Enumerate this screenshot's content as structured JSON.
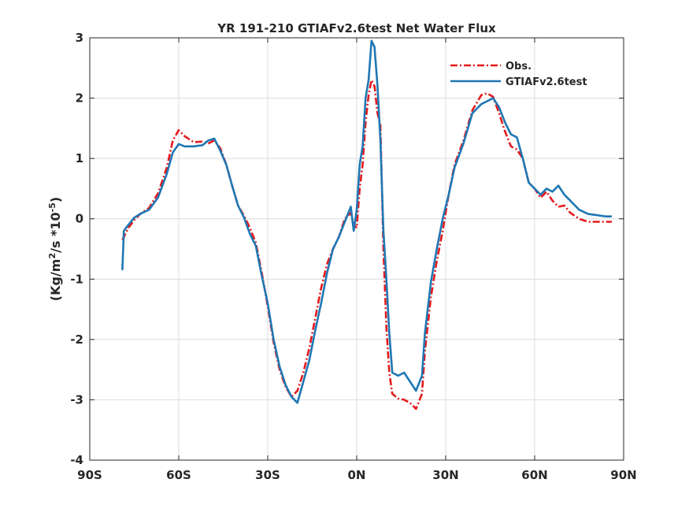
{
  "chart_data": {
    "type": "line",
    "title": "YR 191-210 GTIAFv2.6test  Net Water Flux",
    "xlabel": "",
    "ylabel_parts": {
      "prefix": "(Kg/m",
      "sup1": "2",
      "middle": "/s *10",
      "sup2": "-5",
      "suffix": ")"
    },
    "xlim": [
      -90,
      90
    ],
    "ylim": [
      -4,
      3
    ],
    "xticks": [
      -90,
      -60,
      -30,
      0,
      30,
      60,
      90
    ],
    "xtick_labels": [
      "90S",
      "60S",
      "30S",
      "0N",
      "30N",
      "60N",
      "90N"
    ],
    "yticks": [
      -4,
      -3,
      -2,
      -1,
      0,
      1,
      2,
      3
    ],
    "ytick_labels": [
      "-4",
      "-3",
      "-2",
      "-1",
      "0",
      "1",
      "2",
      "3"
    ],
    "grid": true,
    "legend_position": "top-right",
    "series": [
      {
        "name": "Obs.",
        "color": "#e41a1c",
        "dash": "dashdot",
        "x": [
          -79,
          -77,
          -75,
          -73,
          -70,
          -67,
          -64,
          -62,
          -60,
          -58,
          -55,
          -52,
          -50,
          -48,
          -46,
          -44,
          -42,
          -40,
          -38,
          -36,
          -34,
          -32,
          -30,
          -28,
          -26,
          -24,
          -22,
          -20,
          -18,
          -16,
          -14,
          -12,
          -10,
          -8,
          -6,
          -4,
          -2,
          -1,
          0,
          1,
          2,
          3,
          4,
          5,
          6,
          7,
          8,
          9,
          10,
          11,
          12,
          14,
          16,
          18,
          20,
          22,
          23,
          25,
          27,
          29,
          31,
          33,
          36,
          39,
          42,
          44,
          46,
          48,
          50,
          52,
          54,
          56,
          58,
          60,
          62,
          64,
          66,
          68,
          70,
          72,
          75,
          78,
          81,
          84,
          86
        ],
        "y": [
          -0.35,
          -0.15,
          -0.02,
          0.08,
          0.18,
          0.42,
          0.85,
          1.3,
          1.47,
          1.37,
          1.27,
          1.28,
          1.25,
          1.3,
          1.17,
          0.9,
          0.55,
          0.22,
          0.05,
          -0.15,
          -0.4,
          -0.9,
          -1.45,
          -2.05,
          -2.5,
          -2.78,
          -2.95,
          -2.85,
          -2.55,
          -2.15,
          -1.65,
          -1.15,
          -0.75,
          -0.5,
          -0.3,
          0.0,
          0.1,
          -0.1,
          -0.15,
          0.5,
          0.9,
          1.6,
          2.05,
          2.3,
          2.2,
          1.75,
          1.55,
          -0.5,
          -1.8,
          -2.55,
          -2.9,
          -2.98,
          -3.0,
          -3.05,
          -3.15,
          -2.9,
          -2.2,
          -1.3,
          -0.7,
          -0.2,
          0.4,
          0.9,
          1.3,
          1.8,
          2.05,
          2.08,
          2.02,
          1.75,
          1.45,
          1.2,
          1.15,
          1.0,
          0.6,
          0.5,
          0.35,
          0.45,
          0.3,
          0.2,
          0.22,
          0.1,
          0.0,
          -0.05,
          -0.05,
          -0.05,
          -0.05
        ]
      },
      {
        "name": "GTIAFv2.6test",
        "color": "#1f77b4",
        "dash": "solid",
        "x": [
          -79,
          -78.5,
          -77,
          -75,
          -73,
          -70,
          -67,
          -64,
          -62,
          -60,
          -58,
          -55,
          -52,
          -50,
          -48,
          -46,
          -44,
          -42,
          -40,
          -38,
          -36,
          -34,
          -32,
          -30,
          -28,
          -26,
          -24,
          -22,
          -20,
          -18,
          -16,
          -14,
          -12,
          -10,
          -8,
          -6,
          -4,
          -2,
          -1,
          0,
          1,
          2,
          3,
          4,
          5,
          6,
          7,
          8,
          9,
          10,
          11,
          12,
          14,
          16,
          18,
          20,
          22,
          23,
          25,
          27,
          29,
          31,
          33,
          36,
          39,
          42,
          44,
          46,
          48,
          50,
          52,
          54,
          56,
          58,
          60,
          62,
          64,
          66,
          68,
          70,
          72,
          75,
          78,
          81,
          84,
          86
        ],
        "y": [
          -0.85,
          -0.2,
          -0.1,
          0.02,
          0.08,
          0.15,
          0.35,
          0.75,
          1.1,
          1.24,
          1.2,
          1.2,
          1.22,
          1.3,
          1.33,
          1.13,
          0.9,
          0.55,
          0.22,
          0.02,
          -0.25,
          -0.45,
          -0.95,
          -1.4,
          -2.0,
          -2.45,
          -2.75,
          -2.95,
          -3.05,
          -2.7,
          -2.35,
          -1.85,
          -1.4,
          -0.9,
          -0.5,
          -0.3,
          -0.05,
          0.2,
          -0.2,
          0.15,
          0.9,
          1.2,
          2.0,
          2.3,
          2.95,
          2.85,
          2.2,
          1.3,
          -0.2,
          -1.0,
          -1.9,
          -2.55,
          -2.6,
          -2.55,
          -2.7,
          -2.85,
          -2.6,
          -1.9,
          -1.05,
          -0.5,
          0.0,
          0.4,
          0.85,
          1.25,
          1.75,
          1.9,
          1.95,
          2.0,
          1.85,
          1.6,
          1.4,
          1.35,
          1.0,
          0.6,
          0.5,
          0.4,
          0.5,
          0.45,
          0.55,
          0.4,
          0.3,
          0.15,
          0.08,
          0.06,
          0.04,
          0.04
        ]
      }
    ]
  }
}
